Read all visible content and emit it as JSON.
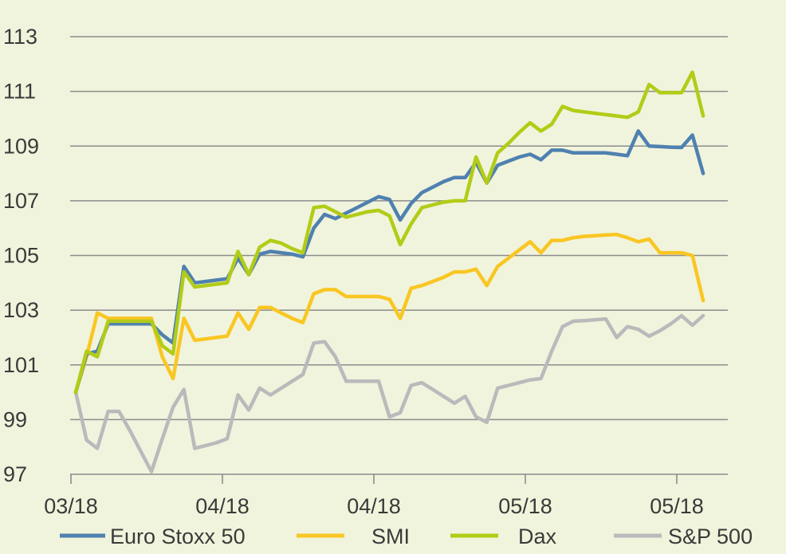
{
  "chart_data": {
    "type": "line",
    "title": "",
    "xlabel": "",
    "ylabel": "",
    "ylim": [
      97,
      113
    ],
    "yticks": [
      97,
      99,
      101,
      103,
      105,
      107,
      109,
      111,
      113
    ],
    "ytick_labels": [
      "97",
      "99",
      "101",
      "103",
      "105",
      "107",
      "109",
      "111",
      "113"
    ],
    "xticks": [
      0,
      14,
      28,
      42,
      56
    ],
    "xtick_labels": [
      "03/18",
      "04/18",
      "04/18",
      "05/18",
      "05/18"
    ],
    "xlim": [
      0,
      58.5
    ],
    "grid": "horizontal",
    "legend": "bottom",
    "series": [
      {
        "name": "Euro Stoxx 50",
        "color": "#4f81b0",
        "x": [
          0,
          1,
          2,
          3,
          4,
          5,
          6,
          7,
          8,
          9,
          10,
          11,
          12,
          13,
          14,
          15,
          16,
          17,
          18,
          19,
          20,
          21,
          22,
          23,
          24,
          25,
          26,
          27,
          28,
          29,
          30,
          31,
          32,
          33,
          34,
          35,
          36,
          37,
          38,
          39,
          40,
          41,
          42,
          43,
          44,
          45,
          46,
          47,
          48,
          49,
          50,
          51,
          52,
          53,
          54,
          55,
          56,
          57,
          58
        ],
        "values": [
          100.0,
          101.4,
          101.5,
          102.5,
          102.5,
          102.5,
          102.5,
          102.5,
          102.1,
          101.8,
          104.6,
          104.0,
          104.05,
          104.1,
          104.15,
          104.9,
          104.3,
          105.05,
          105.15,
          105.1,
          105.05,
          104.95,
          106.0,
          106.5,
          106.35,
          106.55,
          106.75,
          106.95,
          107.15,
          107.05,
          106.3,
          106.9,
          107.3,
          107.5,
          107.7,
          107.85,
          107.85,
          108.4,
          107.65,
          108.3,
          108.45,
          108.6,
          108.7,
          108.5,
          108.85,
          108.85,
          108.75,
          108.75,
          108.75,
          108.75,
          108.7,
          108.65,
          109.55,
          109.0,
          108.98,
          108.96,
          108.95,
          109.4,
          108.0
        ]
      },
      {
        "name": "SMI",
        "color": "#f9c623",
        "x": [
          0,
          1,
          2,
          3,
          4,
          5,
          6,
          7,
          8,
          9,
          10,
          11,
          12,
          13,
          14,
          15,
          16,
          17,
          18,
          19,
          20,
          21,
          22,
          23,
          24,
          25,
          26,
          27,
          28,
          29,
          30,
          31,
          32,
          33,
          34,
          35,
          36,
          37,
          38,
          39,
          40,
          41,
          42,
          43,
          44,
          45,
          46,
          47,
          48,
          49,
          50,
          51,
          52,
          53,
          54,
          55,
          56,
          57,
          58
        ],
        "values": [
          100.0,
          101.3,
          102.9,
          102.7,
          102.7,
          102.7,
          102.7,
          102.7,
          101.3,
          100.5,
          102.7,
          101.9,
          101.95,
          102.0,
          102.05,
          102.9,
          102.3,
          103.1,
          103.1,
          102.9,
          102.7,
          102.55,
          103.6,
          103.75,
          103.75,
          103.5,
          103.5,
          103.5,
          103.5,
          103.4,
          102.7,
          103.8,
          103.9,
          104.05,
          104.2,
          104.4,
          104.4,
          104.5,
          103.9,
          104.6,
          104.9,
          105.2,
          105.5,
          105.1,
          105.55,
          105.55,
          105.65,
          105.7,
          105.72,
          105.75,
          105.77,
          105.65,
          105.5,
          105.6,
          105.1,
          105.1,
          105.1,
          105.0,
          103.35
        ]
      },
      {
        "name": "Dax",
        "color": "#b2cc17",
        "x": [
          0,
          1,
          2,
          3,
          4,
          5,
          6,
          7,
          8,
          9,
          10,
          11,
          12,
          13,
          14,
          15,
          16,
          17,
          18,
          19,
          20,
          21,
          22,
          23,
          24,
          25,
          26,
          27,
          28,
          29,
          30,
          31,
          32,
          33,
          34,
          35,
          36,
          37,
          38,
          39,
          40,
          41,
          42,
          43,
          44,
          45,
          46,
          47,
          48,
          49,
          50,
          51,
          52,
          53,
          54,
          55,
          56,
          57,
          58
        ],
        "values": [
          100.0,
          101.5,
          101.3,
          102.6,
          102.6,
          102.6,
          102.6,
          102.6,
          101.7,
          101.4,
          104.4,
          103.85,
          103.9,
          103.95,
          104.0,
          105.15,
          104.3,
          105.3,
          105.55,
          105.45,
          105.25,
          105.1,
          106.75,
          106.8,
          106.6,
          106.4,
          106.5,
          106.6,
          106.65,
          106.45,
          105.4,
          106.15,
          106.75,
          106.85,
          106.95,
          107.0,
          107.0,
          108.6,
          107.65,
          108.75,
          109.1,
          109.5,
          109.85,
          109.55,
          109.8,
          110.45,
          110.3,
          110.25,
          110.2,
          110.15,
          110.1,
          110.05,
          110.25,
          111.25,
          110.95,
          110.95,
          110.95,
          111.7,
          110.1
        ]
      },
      {
        "name": "S&P 500",
        "color": "#b8babb",
        "x": [
          0,
          1,
          2,
          3,
          4,
          5,
          6,
          7,
          8,
          9,
          10,
          11,
          12,
          13,
          14,
          15,
          16,
          17,
          18,
          19,
          20,
          21,
          22,
          23,
          24,
          25,
          26,
          27,
          28,
          29,
          30,
          31,
          32,
          33,
          34,
          35,
          36,
          37,
          38,
          39,
          40,
          41,
          42,
          43,
          44,
          45,
          46,
          47,
          48,
          49,
          50,
          51,
          52,
          53,
          54,
          55,
          56,
          57,
          58
        ],
        "values": [
          100.0,
          98.25,
          97.95,
          99.3,
          99.3,
          98.6,
          97.85,
          97.1,
          98.3,
          99.45,
          100.1,
          97.95,
          98.05,
          98.15,
          98.3,
          99.9,
          99.35,
          100.15,
          99.9,
          100.15,
          100.4,
          100.65,
          101.8,
          101.85,
          101.3,
          100.4,
          100.4,
          100.4,
          100.4,
          99.1,
          99.25,
          100.25,
          100.35,
          100.1,
          99.85,
          99.6,
          99.85,
          99.1,
          98.9,
          100.15,
          100.25,
          100.35,
          100.45,
          100.5,
          101.5,
          102.4,
          102.6,
          102.62,
          102.65,
          102.68,
          102.0,
          102.4,
          102.3,
          102.05,
          102.25,
          102.5,
          102.8,
          102.45,
          102.8
        ]
      }
    ]
  }
}
